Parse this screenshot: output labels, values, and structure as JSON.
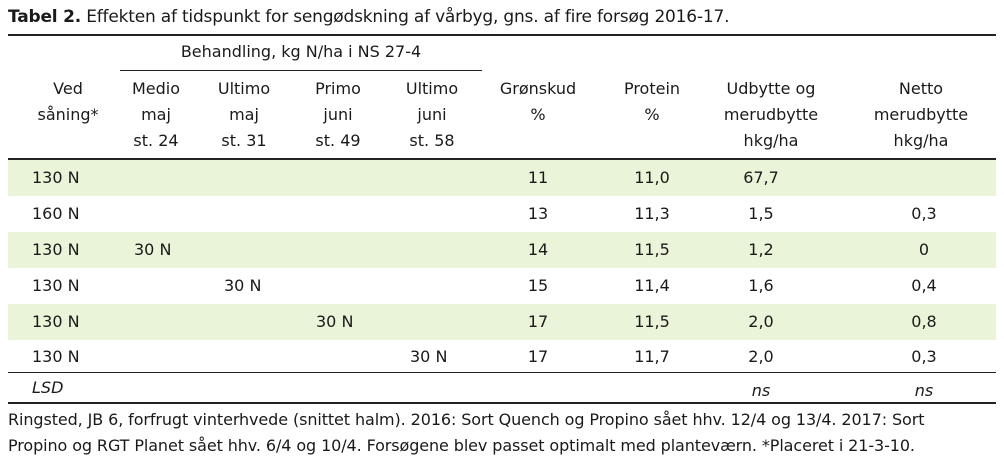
{
  "caption": {
    "label": "Tabel 2.",
    "text": "Effekten af tidspunkt for sengødskning af vårbyg, gns. af fire forsøg 2016-17."
  },
  "group_header": "Behandling, kg N/ha i NS 27-4",
  "columns": [
    {
      "lines": [
        "Ved",
        "såning*"
      ]
    },
    {
      "lines": [
        "Medio",
        "maj",
        "st. 24"
      ]
    },
    {
      "lines": [
        "Ultimo",
        "maj",
        "st. 31"
      ]
    },
    {
      "lines": [
        "Primo",
        "juni",
        "st. 49"
      ]
    },
    {
      "lines": [
        "Ultimo",
        "juni",
        "st. 58"
      ]
    },
    {
      "lines": [
        "Grønskud",
        "%"
      ]
    },
    {
      "lines": [
        "Protein",
        "%"
      ]
    },
    {
      "lines": [
        "Udbytte og",
        "merudbytte",
        "hkg/ha"
      ]
    },
    {
      "lines": [
        "Netto",
        "merudbytte",
        "hkg/ha"
      ]
    }
  ],
  "rows": [
    {
      "cells": [
        "130 N",
        "",
        "",
        "",
        "",
        "11",
        "11,0",
        "67,7",
        ""
      ]
    },
    {
      "cells": [
        "160 N",
        "",
        "",
        "",
        "",
        "13",
        "11,3",
        "1,5",
        "0,3"
      ]
    },
    {
      "cells": [
        "130 N",
        "30 N",
        "",
        "",
        "",
        "14",
        "11,5",
        "1,2",
        "0"
      ]
    },
    {
      "cells": [
        "130 N",
        "",
        "30 N",
        "",
        "",
        "15",
        "11,4",
        "1,6",
        "0,4"
      ]
    },
    {
      "cells": [
        "130 N",
        "",
        "",
        "30 N",
        "",
        "17",
        "11,5",
        "2,0",
        "0,8"
      ]
    },
    {
      "cells": [
        "130 N",
        "",
        "",
        "",
        "30 N",
        "17",
        "11,7",
        "2,0",
        "0,3"
      ]
    }
  ],
  "lsd_row": {
    "label": "LSD",
    "udbytte": "ns",
    "netto": "ns"
  },
  "footnotes": [
    "Ringsted, JB 6, forfrugt vinterhvede (snittet halm). 2016: Sort Quench og Propino sået hhv. 12/4 og 13/4. 2017: Sort",
    "Propino og RGT Planet sået hhv. 6/4 og 10/4. Forsøgene blev passet optimalt med planteværn.  *Placeret i 21-3-10."
  ],
  "colors": {
    "band": "#e9f4d8",
    "rule": "#222222",
    "text": "#1a1a1a"
  }
}
